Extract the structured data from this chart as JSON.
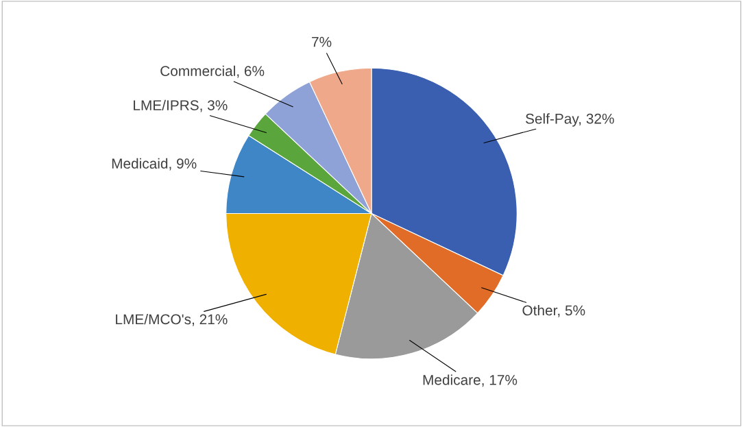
{
  "chart_data": {
    "type": "pie",
    "categories": [
      "Self-Pay",
      "Other",
      "Medicare",
      "LME/MCO's",
      "Medicaid",
      "LME/IPRS",
      "Commercial",
      null
    ],
    "values": [
      32,
      5,
      17,
      21,
      9,
      3,
      6,
      7
    ],
    "colors": [
      "#3a5fb0",
      "#e06c28",
      "#9a9a9a",
      "#f0b000",
      "#3f86c6",
      "#5aa63c",
      "#8fa2d8",
      "#f0a88a"
    ],
    "value_labels": [
      "32%",
      "5%",
      "17%",
      "21%",
      "9%",
      "3%",
      "6%",
      "7%"
    ],
    "legend": false
  }
}
